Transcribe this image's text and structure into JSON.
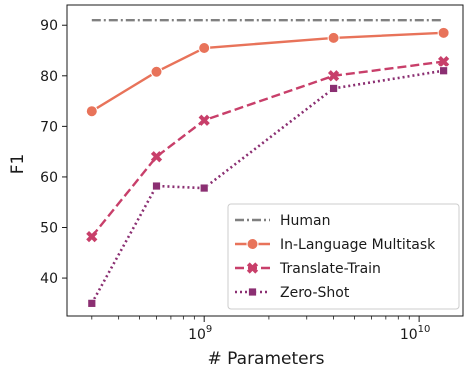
{
  "chart_data": {
    "type": "line",
    "xlabel": "# Parameters",
    "ylabel": "F1",
    "xscale": "log",
    "xlim": [
      230000000,
      16000000000
    ],
    "ylim": [
      32.5,
      94
    ],
    "xticks": [
      {
        "value": 1000000000,
        "base": "10",
        "exp": "9"
      },
      {
        "value": 10000000000,
        "base": "10",
        "exp": "10"
      }
    ],
    "yticks": [
      40,
      50,
      60,
      70,
      80,
      90
    ],
    "grid": false,
    "legend_position": "lower-right",
    "series": [
      {
        "name": "Human",
        "style": "dashdot",
        "color": "#808080",
        "marker": "none",
        "x": [
          300000000,
          13000000000
        ],
        "y": [
          91,
          91
        ]
      },
      {
        "name": "In-Language Multitask",
        "style": "solid",
        "color": "#e8735a",
        "marker": "circle",
        "x": [
          300000000,
          600000000,
          1000000000,
          4000000000,
          13000000000
        ],
        "y": [
          73,
          80.8,
          85.5,
          87.5,
          88.5
        ]
      },
      {
        "name": "Translate-Train",
        "style": "dashed",
        "color": "#c83f6a",
        "marker": "x",
        "x": [
          300000000,
          600000000,
          1000000000,
          4000000000,
          13000000000
        ],
        "y": [
          48.2,
          64,
          71.2,
          80,
          82.8
        ]
      },
      {
        "name": "Zero-Shot",
        "style": "dotted",
        "color": "#8b2f72",
        "marker": "square",
        "x": [
          300000000,
          600000000,
          1000000000,
          4000000000,
          13000000000
        ],
        "y": [
          35,
          58.2,
          57.8,
          77.5,
          81
        ]
      }
    ]
  }
}
